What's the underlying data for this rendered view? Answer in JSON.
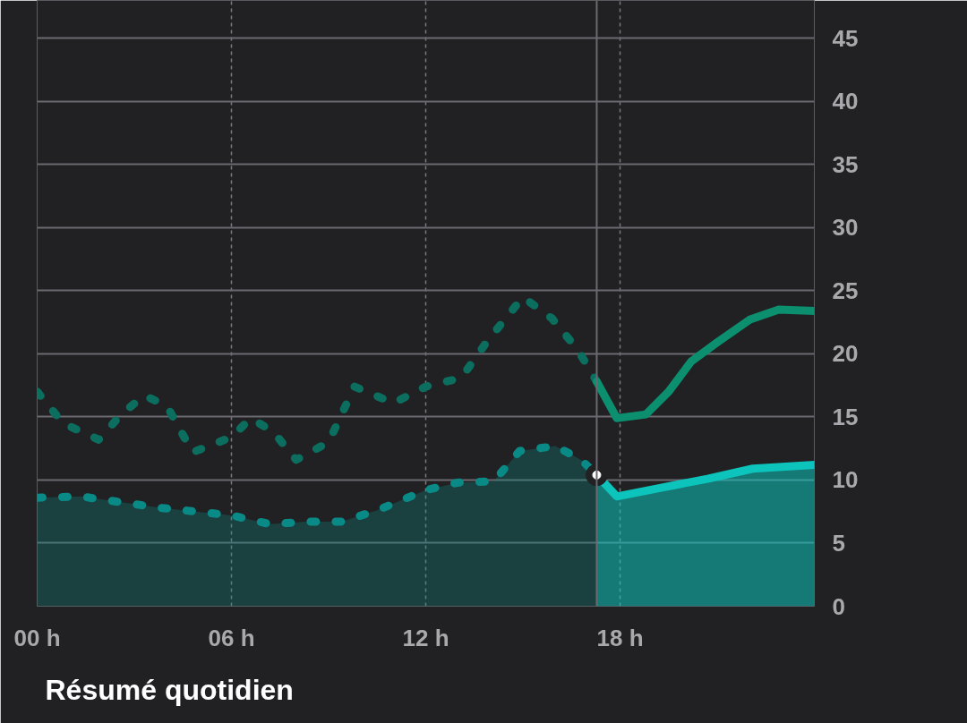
{
  "chart_data": {
    "type": "line",
    "xlim": [
      0,
      24
    ],
    "ylim": [
      0,
      48
    ],
    "xticks": [
      {
        "value": 0,
        "label": "00 h"
      },
      {
        "value": 6,
        "label": "06 h"
      },
      {
        "value": 12,
        "label": "12 h"
      },
      {
        "value": 18,
        "label": "18 h"
      }
    ],
    "yticks": [
      0,
      5,
      10,
      15,
      20,
      25,
      30,
      35,
      40,
      45
    ],
    "grid": true,
    "series": [
      {
        "line_style": "dashed",
        "color": "#0b6e5e",
        "x": [
          0,
          0.8,
          1.9,
          2.6,
          3.3,
          4.0,
          4.8,
          6.0,
          6.6,
          7.3,
          8.0,
          9.0,
          9.8,
          11.0,
          12.0,
          13.1,
          13.9,
          15.0,
          15.9,
          16.7,
          17.28
        ],
        "values": [
          17.0,
          14.5,
          13.2,
          15.2,
          16.7,
          15.9,
          12.2,
          13.4,
          14.9,
          13.8,
          11.6,
          13.0,
          17.4,
          16.1,
          17.4,
          18.1,
          21.0,
          24.5,
          22.8,
          20.3,
          17.8
        ]
      },
      {
        "line_style": "solid",
        "color": "#0b8f6e",
        "x": [
          17.28,
          17.9,
          18.8,
          19.5,
          20.2,
          21.0,
          22.0,
          22.9,
          24.0
        ],
        "values": [
          17.8,
          14.9,
          15.2,
          17.0,
          19.4,
          20.9,
          22.7,
          23.5,
          23.4
        ]
      },
      {
        "type": "area",
        "line_style": "dashed",
        "color": "#0a8a86",
        "x": [
          0,
          1.35,
          2.7,
          3.8,
          4.9,
          6.0,
          7.2,
          8.3,
          9.4,
          10.5,
          12.0,
          13.0,
          14.1,
          14.9,
          16.0,
          16.8,
          17.28
        ],
        "values": [
          8.6,
          8.7,
          8.2,
          7.8,
          7.5,
          7.2,
          6.5,
          6.7,
          6.7,
          7.6,
          9.2,
          9.8,
          9.9,
          12.3,
          12.7,
          11.6,
          10.4
        ]
      },
      {
        "type": "area",
        "line_style": "solid",
        "color": "#0cc4bc",
        "x": [
          17.28,
          17.9,
          19.3,
          20.7,
          22.1,
          24.0
        ],
        "values": [
          10.4,
          8.7,
          9.4,
          10.1,
          10.9,
          11.2
        ]
      },
      {
        "type": "scatter",
        "marker": "circle",
        "color": "#ffffff",
        "x": [
          17.28
        ],
        "values": [
          10.4
        ]
      }
    ],
    "ref_lines": [
      {
        "axis": "x",
        "value": 17.28,
        "label": null,
        "color": "#6a6a70",
        "line_style": "solid"
      }
    ],
    "annotations": [
      "Résumé quotidien"
    ]
  }
}
